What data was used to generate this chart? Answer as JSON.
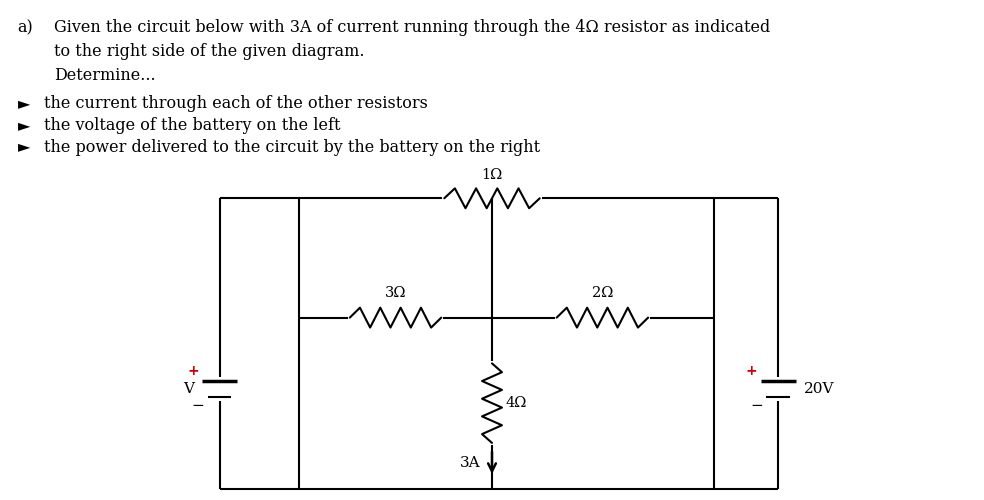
{
  "background_color": "#ffffff",
  "text_color": "#000000",
  "title_a": "a)",
  "title_line1": "Given the circuit below with 3A of current running through the 4Ω resistor as indicated",
  "title_line2": "to the right side of the given diagram.",
  "title_line3": "Determine...",
  "bullet_arrow": "►",
  "bullet1": "the current through each of the other resistors",
  "bullet2": "the voltage of the battery on the left",
  "bullet3": "the power delivered to the circuit by the battery on the right",
  "top_resistor_label": "1Ω",
  "left_resistor_label": "3Ω",
  "right_resistor_label": "2Ω",
  "center_resistor_label": "4Ω",
  "current_label": "3A",
  "left_battery_label": "V",
  "right_battery_label": "20V",
  "plus_color": "#cc0000",
  "minus_color": "#000000"
}
